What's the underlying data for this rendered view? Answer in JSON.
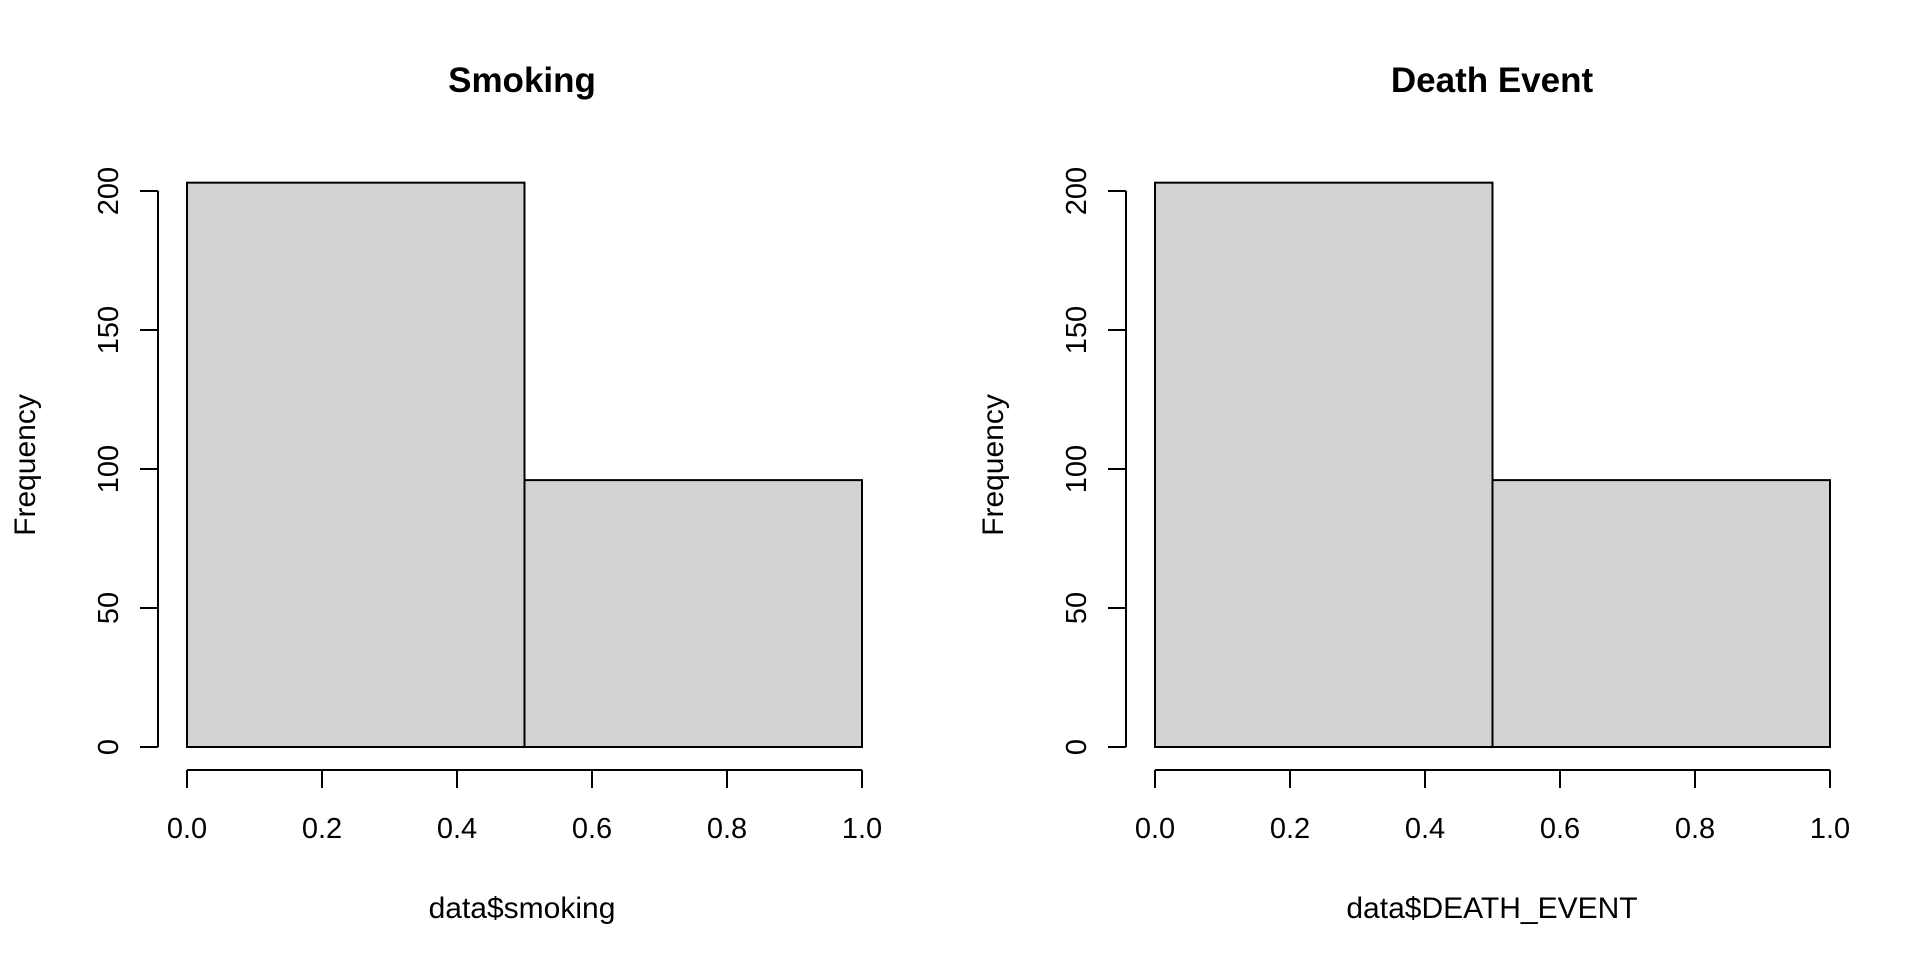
{
  "chart_data": [
    {
      "type": "bar",
      "title": "Smoking",
      "xlabel": "data$smoking",
      "ylabel": "Frequency",
      "bins": [
        [
          0.0,
          0.5
        ],
        [
          0.5,
          1.0
        ]
      ],
      "values": [
        203,
        96
      ],
      "xlim": [
        0,
        1
      ],
      "ylim": [
        0,
        200
      ],
      "xticks": [
        "0.0",
        "0.2",
        "0.4",
        "0.6",
        "0.8",
        "1.0"
      ],
      "yticks": [
        "0",
        "50",
        "100",
        "150",
        "200"
      ],
      "bar_color": "#d3d3d3",
      "grid": false
    },
    {
      "type": "bar",
      "title": "Death Event",
      "xlabel": "data$DEATH_EVENT",
      "ylabel": "Frequency",
      "bins": [
        [
          0.0,
          0.5
        ],
        [
          0.5,
          1.0
        ]
      ],
      "values": [
        203,
        96
      ],
      "xlim": [
        0,
        1
      ],
      "ylim": [
        0,
        200
      ],
      "xticks": [
        "0.0",
        "0.2",
        "0.4",
        "0.6",
        "0.8",
        "1.0"
      ],
      "yticks": [
        "0",
        "50",
        "100",
        "150",
        "200"
      ],
      "bar_color": "#d3d3d3",
      "grid": false
    }
  ]
}
